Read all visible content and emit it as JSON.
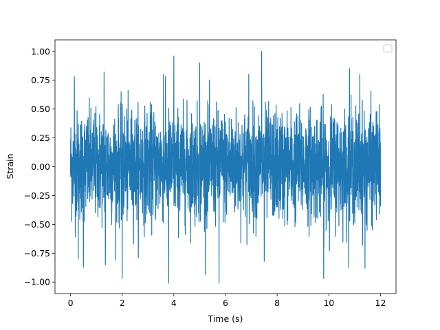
{
  "chart_data": {
    "type": "line",
    "title": "",
    "xlabel": "Time (s)",
    "ylabel": "Strain",
    "xlim": [
      -0.6,
      12.6
    ],
    "ylim": [
      -1.1,
      1.1
    ],
    "x_ticks": [
      0,
      2,
      4,
      6,
      8,
      10,
      12
    ],
    "x_tick_labels": [
      "0",
      "2",
      "4",
      "6",
      "8",
      "10",
      "12"
    ],
    "y_ticks": [
      -1.0,
      -0.75,
      -0.5,
      -0.25,
      0.0,
      0.25,
      0.5,
      0.75,
      1.0
    ],
    "y_tick_labels": [
      "−1.00",
      "−0.75",
      "−0.50",
      "−0.25",
      "0.00",
      "0.25",
      "0.50",
      "0.75",
      "1.00"
    ],
    "grid": false,
    "legend": {
      "placement": "top-right",
      "entries": []
    },
    "series": [
      {
        "color": "#1f77b4",
        "x_range": [
          0,
          12
        ],
        "y_range": [
          -1.01,
          1.0
        ],
        "typical_band": [
          -0.55,
          0.57
        ],
        "extremes": [
          {
            "x": 0.15,
            "y": 0.78
          },
          {
            "x": 0.3,
            "y": -0.8
          },
          {
            "x": 0.5,
            "y": -0.87
          },
          {
            "x": 1.3,
            "y": 0.82
          },
          {
            "x": 1.35,
            "y": -0.85
          },
          {
            "x": 2.0,
            "y": -0.97
          },
          {
            "x": 3.6,
            "y": 0.8
          },
          {
            "x": 3.8,
            "y": -1.01
          },
          {
            "x": 4.0,
            "y": 0.96
          },
          {
            "x": 5.0,
            "y": 0.9
          },
          {
            "x": 5.75,
            "y": -1.01
          },
          {
            "x": 6.9,
            "y": 0.8
          },
          {
            "x": 7.4,
            "y": 1.0
          },
          {
            "x": 7.5,
            "y": -0.82
          },
          {
            "x": 9.8,
            "y": -0.97
          },
          {
            "x": 10.8,
            "y": 0.85
          },
          {
            "x": 11.2,
            "y": 0.8
          },
          {
            "x": 11.4,
            "y": -0.88
          }
        ]
      }
    ]
  }
}
